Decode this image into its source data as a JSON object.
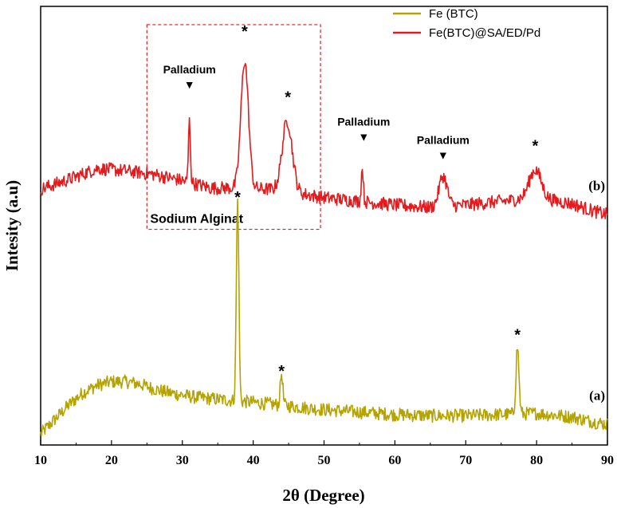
{
  "chart_data": {
    "type": "line",
    "xlabel": "2θ (Degree)",
    "ylabel": "Intesity (a.u)",
    "xlim": [
      10,
      90
    ],
    "xticks": [
      10,
      20,
      30,
      40,
      50,
      60,
      70,
      80,
      90
    ],
    "grid": false,
    "legend_position": "top-right",
    "series": [
      {
        "name": "Fe (BTC)",
        "curve_label": "(a)",
        "color": "#b5a300",
        "baseline": [
          [
            10,
            0.04
          ],
          [
            12,
            0.16
          ],
          [
            14,
            0.28
          ],
          [
            16,
            0.38
          ],
          [
            18,
            0.44
          ],
          [
            20,
            0.47
          ],
          [
            22,
            0.47
          ],
          [
            24,
            0.45
          ],
          [
            26,
            0.41
          ],
          [
            28,
            0.38
          ],
          [
            30,
            0.36
          ],
          [
            32,
            0.34
          ],
          [
            34,
            0.33
          ],
          [
            36,
            0.32
          ],
          [
            40,
            0.3
          ],
          [
            45,
            0.27
          ],
          [
            50,
            0.24
          ],
          [
            55,
            0.22
          ],
          [
            60,
            0.2
          ],
          [
            65,
            0.19
          ],
          [
            70,
            0.19
          ],
          [
            75,
            0.2
          ],
          [
            80,
            0.21
          ],
          [
            85,
            0.18
          ],
          [
            88,
            0.14
          ],
          [
            90,
            0.12
          ]
        ],
        "peaks": [
          {
            "x": 37.8,
            "height": 1.65,
            "width": 0.25
          },
          {
            "x": 44.0,
            "height": 0.26,
            "width": 0.25
          },
          {
            "x": 77.3,
            "height": 0.55,
            "width": 0.3
          }
        ]
      },
      {
        "name": "Fe(BTC)@SA/ED/Pd",
        "curve_label": "(b)",
        "color": "#e41a1c",
        "baseline": [
          [
            10,
            2.05
          ],
          [
            14,
            2.13
          ],
          [
            18,
            2.22
          ],
          [
            22,
            2.2
          ],
          [
            26,
            2.17
          ],
          [
            30,
            2.12
          ],
          [
            34,
            2.06
          ],
          [
            37,
            2.06
          ],
          [
            42,
            2.05
          ],
          [
            46,
            2.02
          ],
          [
            50,
            1.98
          ],
          [
            55,
            1.95
          ],
          [
            60,
            1.92
          ],
          [
            65,
            1.9
          ],
          [
            70,
            1.92
          ],
          [
            75,
            1.95
          ],
          [
            80,
            1.98
          ],
          [
            85,
            1.93
          ],
          [
            88,
            1.87
          ],
          [
            90,
            1.84
          ]
        ],
        "peaks": [
          {
            "x": 31.0,
            "height": 0.5,
            "width": 0.2
          },
          {
            "x": 38.8,
            "height": 1.05,
            "width": 0.75
          },
          {
            "x": 44.8,
            "height": 0.58,
            "width": 1.0
          },
          {
            "x": 55.4,
            "height": 0.28,
            "width": 0.2
          },
          {
            "x": 66.8,
            "height": 0.25,
            "width": 0.8
          },
          {
            "x": 79.8,
            "height": 0.23,
            "width": 1.2
          }
        ]
      }
    ],
    "annotations": [
      {
        "text": "*",
        "x": 37.8,
        "y": 2.02
      },
      {
        "text": "*",
        "x": 44.0,
        "y": 0.59
      },
      {
        "text": "*",
        "x": 77.3,
        "y": 0.89
      },
      {
        "text": "*",
        "x": 38.8,
        "y": 3.38
      },
      {
        "text": "*",
        "x": 44.9,
        "y": 2.84
      },
      {
        "text": "*",
        "x": 79.8,
        "y": 2.44
      },
      {
        "text": "Palladium",
        "x": 31.0,
        "y": 3.0,
        "marker": "▼"
      },
      {
        "text": "Palladium",
        "x": 55.6,
        "y": 2.57,
        "marker": "▼"
      },
      {
        "text": "Palladium",
        "x": 66.8,
        "y": 2.42,
        "marker": "▼"
      }
    ],
    "highlight_box": {
      "label": "Sodium Alginat",
      "x_range": [
        25.0,
        49.5
      ],
      "y_range": [
        1.72,
        3.4
      ]
    }
  }
}
